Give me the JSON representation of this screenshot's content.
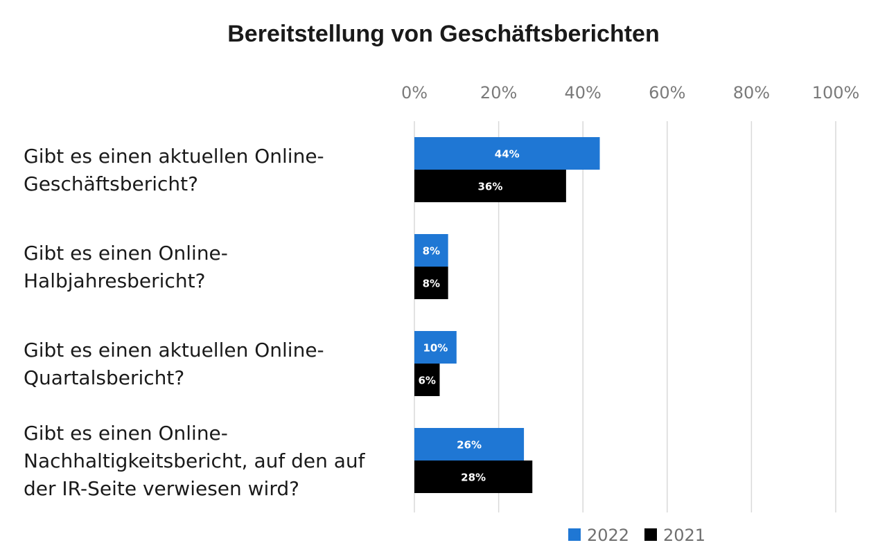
{
  "chart_data": {
    "type": "bar",
    "orientation": "horizontal",
    "title": "Bereitstellung von Geschäftsberichten",
    "categories": [
      [
        "Gibt es einen aktuellen Online-",
        "Geschäftsbericht?"
      ],
      [
        "Gibt es einen Online-",
        "Halbjahresbericht?"
      ],
      [
        "Gibt es einen aktuellen Online-",
        "Quartalsbericht?"
      ],
      [
        "Gibt es einen Online-",
        "Nachhaltigkeitsbericht, auf den auf",
        "der IR-Seite verwiesen wird?"
      ]
    ],
    "series": [
      {
        "name": "2022",
        "color": "#1f77d4",
        "values": [
          44,
          8,
          10,
          26
        ],
        "labels": [
          "44%",
          "8%",
          "10%",
          "26%"
        ]
      },
      {
        "name": "2021",
        "color": "#000000",
        "values": [
          36,
          8,
          6,
          28
        ],
        "labels": [
          "36%",
          "8%",
          "6%",
          "28%"
        ]
      }
    ],
    "xlim": [
      0,
      100
    ],
    "xticks": [
      0,
      20,
      40,
      60,
      80,
      100
    ],
    "xtick_labels": [
      "0%",
      "20%",
      "40%",
      "60%",
      "80%",
      "100%"
    ],
    "axis_position": "top",
    "grid": true,
    "legend_position": "bottom-right"
  }
}
